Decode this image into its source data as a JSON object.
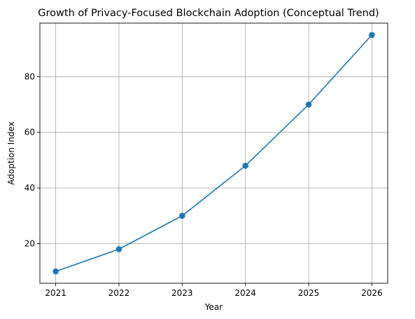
{
  "chart_data": {
    "type": "line",
    "title": "Growth of Privacy-Focused Blockchain Adoption (Conceptual Trend)",
    "xlabel": "Year",
    "ylabel": "Adoption Index",
    "x": [
      2021,
      2022,
      2023,
      2024,
      2025,
      2026
    ],
    "series": [
      {
        "values": [
          10,
          18,
          30,
          48,
          70,
          95
        ]
      }
    ],
    "xlim": [
      2020.75,
      2026.25
    ],
    "ylim": [
      5.75,
      99.25
    ],
    "xticks": [
      "2021",
      "2022",
      "2023",
      "2024",
      "2025",
      "2026"
    ],
    "yticks": [
      "20",
      "40",
      "60",
      "80"
    ],
    "grid": true,
    "marker": "circle",
    "line_color": "#1f77b4"
  }
}
